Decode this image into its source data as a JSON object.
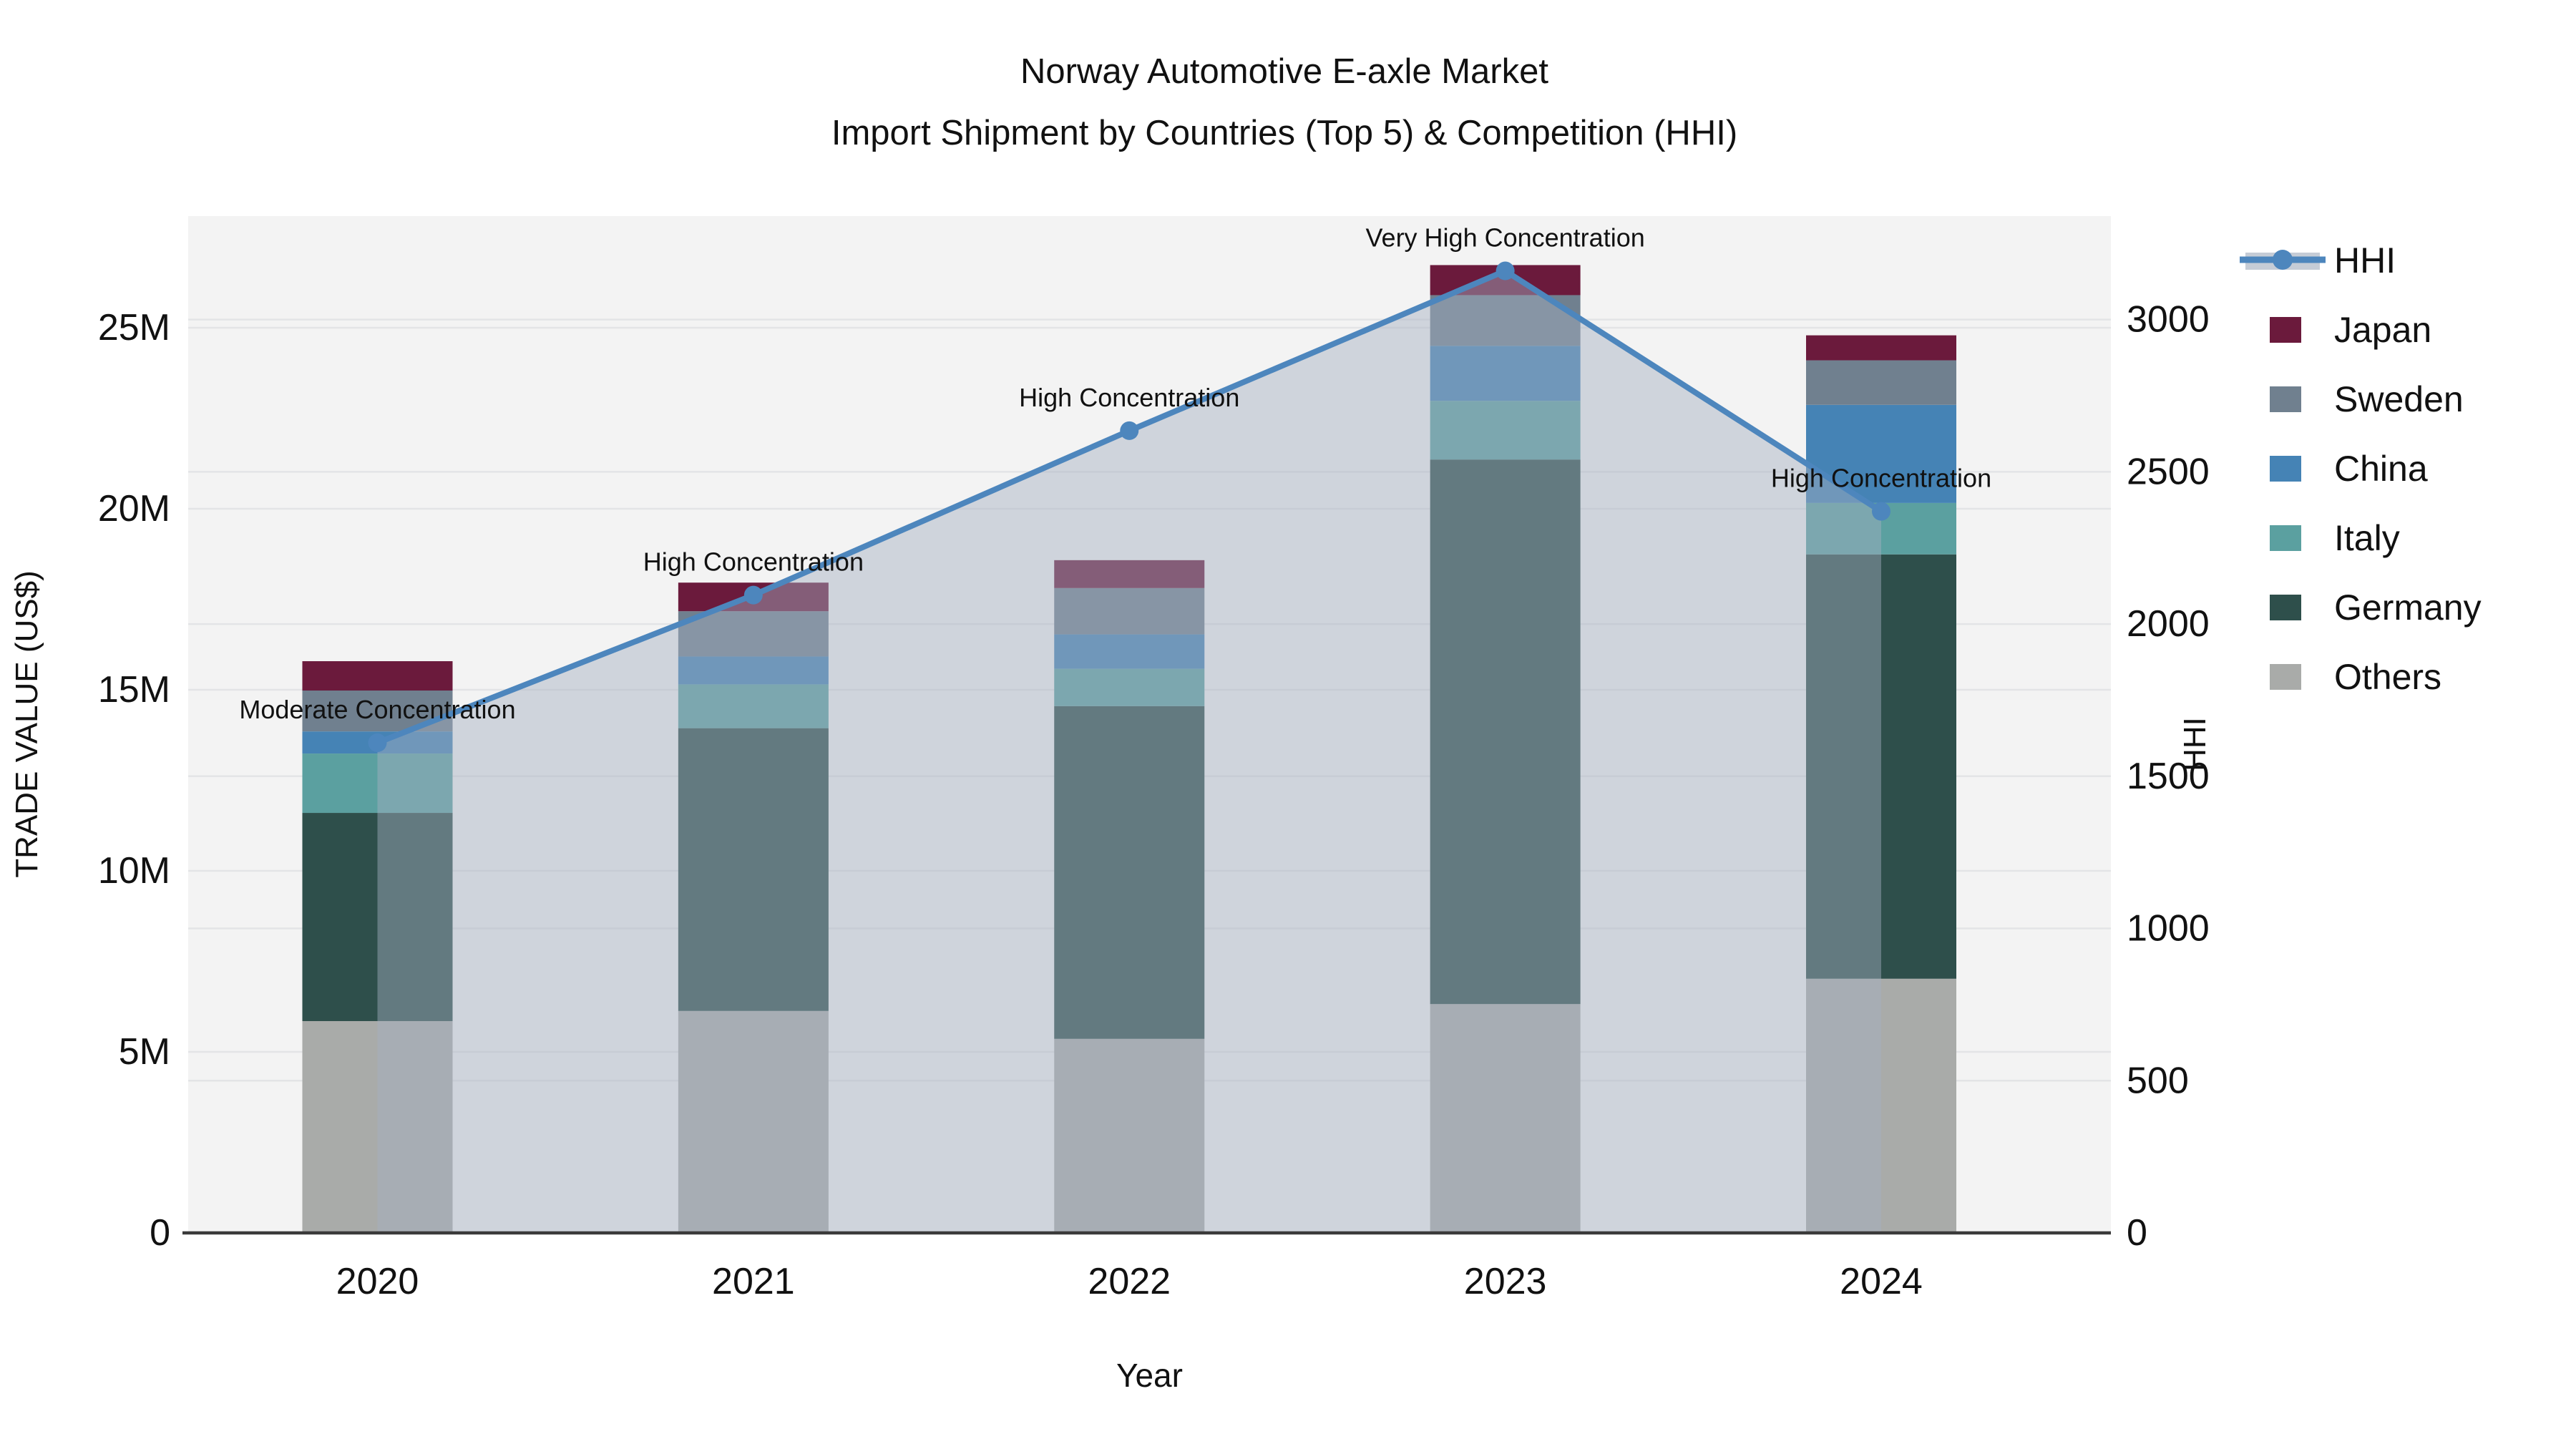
{
  "title": {
    "line1": "Norway Automotive E-axle Market",
    "line2": "Import Shipment by Countries (Top 5) & Competition (HHI)"
  },
  "chart_data": {
    "type": "bar",
    "subtype": "stacked-bars-with-line-area",
    "categories": [
      "2020",
      "2021",
      "2022",
      "2023",
      "2024"
    ],
    "bar_value_unit": "million US$",
    "series": [
      {
        "name": "Others",
        "color": "#a9aba9",
        "values": [
          5.85,
          6.13,
          5.36,
          6.32,
          7.02
        ]
      },
      {
        "name": "Germany",
        "color": "#2e4f4b",
        "values": [
          5.75,
          7.81,
          9.19,
          15.04,
          11.72
        ]
      },
      {
        "name": "Italy",
        "color": "#5ba0a0",
        "values": [
          1.64,
          1.21,
          1.03,
          1.62,
          1.42
        ]
      },
      {
        "name": "China",
        "color": "#4583b5",
        "values": [
          0.61,
          0.77,
          0.95,
          1.52,
          2.71
        ]
      },
      {
        "name": "Sweden",
        "color": "#70808f",
        "values": [
          1.13,
          1.25,
          1.28,
          1.4,
          1.23
        ]
      },
      {
        "name": "Japan",
        "color": "#6b1a3c",
        "values": [
          0.81,
          0.79,
          0.77,
          0.83,
          0.69
        ]
      }
    ],
    "bar_totals": [
      15.79,
      17.96,
      18.58,
      26.73,
      24.79
    ],
    "line": {
      "name": "HHI",
      "color": "#4d86bd",
      "area_fill": "rgba(163,176,192,0.45)",
      "values": [
        1610,
        2095,
        2635,
        3160,
        2370
      ]
    },
    "annotations": [
      "Moderate Concentration",
      "High Concentration",
      "High Concentration",
      "Very High Concentration",
      "High Concentration"
    ],
    "left_axis": {
      "title": "TRADE VALUE (US$)",
      "tick_labels": [
        "0",
        "5M",
        "10M",
        "15M",
        "20M",
        "25M"
      ],
      "tick_values": [
        0,
        5,
        10,
        15,
        20,
        25
      ],
      "range": [
        0,
        28.1
      ]
    },
    "right_axis": {
      "title": "HHI",
      "tick_labels": [
        "0",
        "500",
        "1000",
        "1500",
        "2000",
        "2500",
        "3000"
      ],
      "tick_values": [
        0,
        500,
        1000,
        1500,
        2000,
        2500,
        3000
      ],
      "range": [
        0,
        3340
      ]
    },
    "x_axis": {
      "title": "Year"
    },
    "legend": [
      "HHI",
      "Japan",
      "Sweden",
      "China",
      "Italy",
      "Germany",
      "Others"
    ],
    "grid": true,
    "legend_position": "right",
    "plot_bg": "#f3f3f3",
    "grid_color": "#e3e4e6",
    "axis_line_color": "#3a3a3a"
  }
}
